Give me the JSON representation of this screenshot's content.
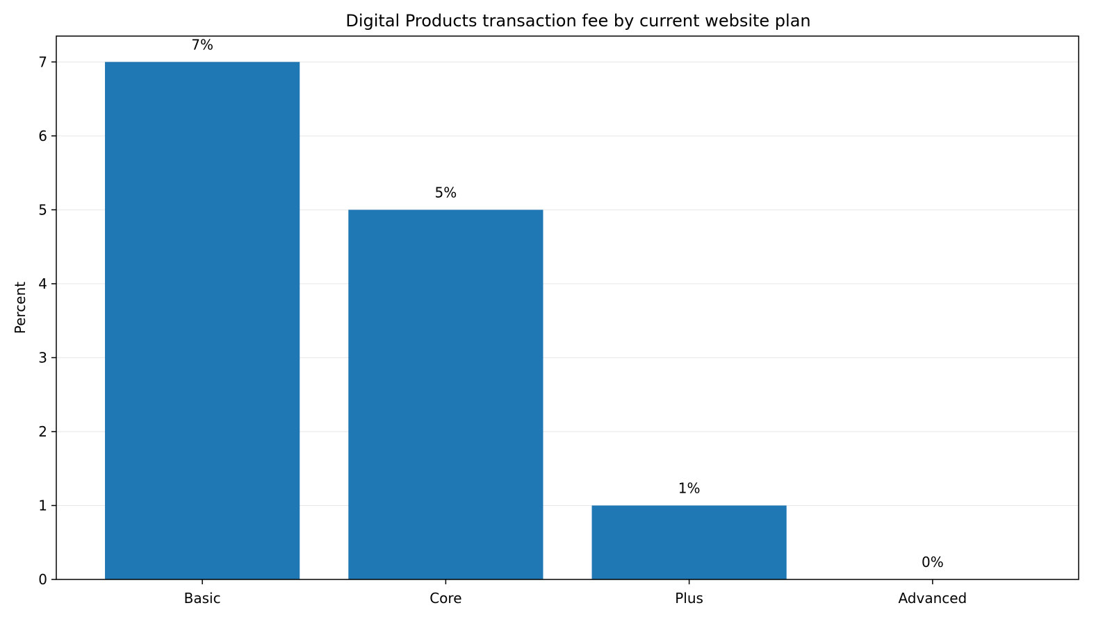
{
  "chart_data": {
    "type": "bar",
    "title": "Digital Products transaction fee by current website plan",
    "xlabel": "",
    "ylabel": "Percent",
    "categories": [
      "Basic",
      "Core",
      "Plus",
      "Advanced"
    ],
    "values": [
      7,
      5,
      1,
      0
    ],
    "data_labels": [
      "7%",
      "5%",
      "1%",
      "0%"
    ],
    "yticks": [
      0,
      1,
      2,
      3,
      4,
      5,
      6,
      7
    ],
    "ylim": [
      0,
      7.35
    ],
    "grid": "horizontal",
    "legend": "none",
    "colors": {
      "bar": "#1f77b4",
      "grid": "#e6e6e6",
      "axis": "#000000"
    }
  }
}
